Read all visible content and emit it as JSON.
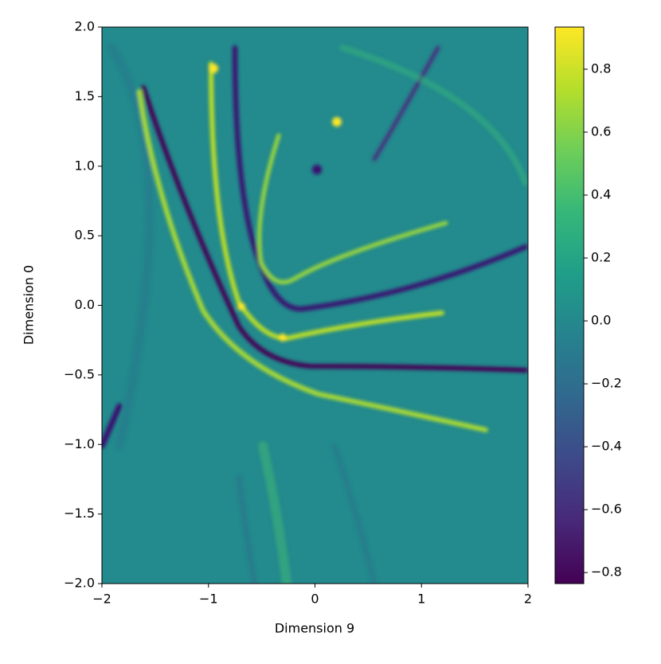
{
  "chart_data": {
    "type": "heatmap",
    "xlabel": "Dimension 9",
    "ylabel": "Dimension 0",
    "xlim": [
      -2,
      2
    ],
    "ylim": [
      -2,
      2
    ],
    "xticks": [
      {
        "value": -2,
        "label": "−2"
      },
      {
        "value": -1,
        "label": "−1"
      },
      0,
      1,
      2
    ],
    "yticks": [
      {
        "value": -2,
        "label": "−2.0"
      },
      {
        "value": -1.5,
        "label": "−1.5"
      },
      {
        "value": -1,
        "label": "−1.0"
      },
      {
        "value": -0.5,
        "label": "−0.5"
      },
      {
        "value": 0,
        "label": "0.0"
      },
      {
        "value": 0.5,
        "label": "0.5"
      },
      {
        "value": 1,
        "label": "1.0"
      },
      {
        "value": 1.5,
        "label": "1.5"
      },
      {
        "value": 2,
        "label": "2.0"
      }
    ],
    "colorbar": {
      "colormap": "viridis",
      "clim": [
        -0.835,
        0.934
      ],
      "ticks": [
        {
          "value": -0.8,
          "label": "−0.8"
        },
        {
          "value": -0.6,
          "label": "−0.6"
        },
        {
          "value": -0.4,
          "label": "−0.4"
        },
        {
          "value": -0.2,
          "label": "−0.2"
        },
        {
          "value": 0,
          "label": "0.0"
        },
        {
          "value": 0.2,
          "label": "0.2"
        },
        {
          "value": 0.4,
          "label": "0.4"
        },
        {
          "value": 0.6,
          "label": "0.6"
        },
        {
          "value": 0.8,
          "label": "0.8"
        }
      ]
    }
  }
}
